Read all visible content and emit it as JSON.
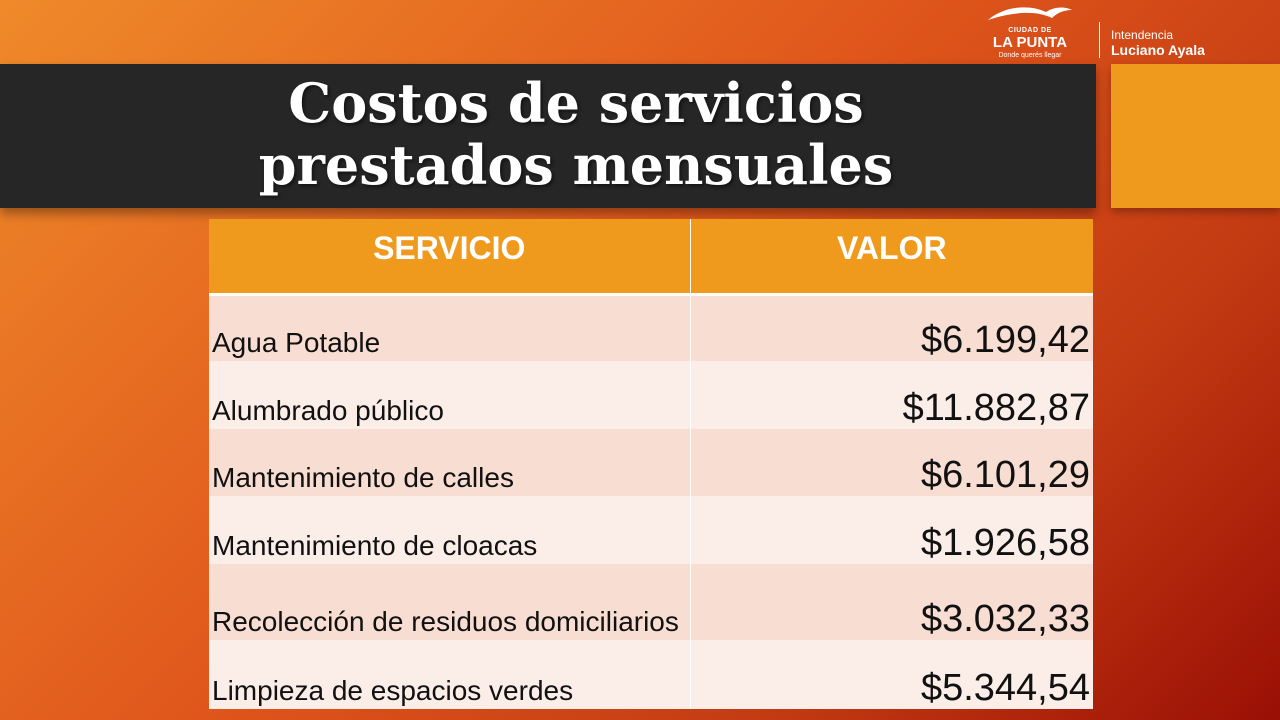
{
  "header": {
    "title_line1": "Costos de servicios",
    "title_line2": "prestados mensuales"
  },
  "logos": {
    "la_punta": {
      "small": "CIUDAD DE",
      "main": "LA PUNTA",
      "tagline": "Donde querés llegar"
    },
    "intendencia": {
      "label": "Intendencia",
      "name": "Luciano Ayala"
    }
  },
  "table": {
    "headers": [
      "SERVICIO",
      "VALOR"
    ],
    "rows": [
      {
        "servicio": "Agua Potable",
        "valor": "$6.199,42"
      },
      {
        "servicio": "Alumbrado público",
        "valor": "$11.882,87"
      },
      {
        "servicio": "Mantenimiento de calles",
        "valor": "$6.101,29"
      },
      {
        "servicio": "Mantenimiento de cloacas",
        "valor": "$1.926,58"
      },
      {
        "servicio": "Recolección de residuos domiciliarios",
        "valor": "$3.032,33"
      },
      {
        "servicio": "Limpieza de espacios verdes",
        "valor": "$5.344,54"
      }
    ]
  },
  "colors": {
    "title_band": "#262626",
    "accent": "#f09a1d",
    "row_odd": "#f8ddd2",
    "row_even": "#fbeee9"
  }
}
